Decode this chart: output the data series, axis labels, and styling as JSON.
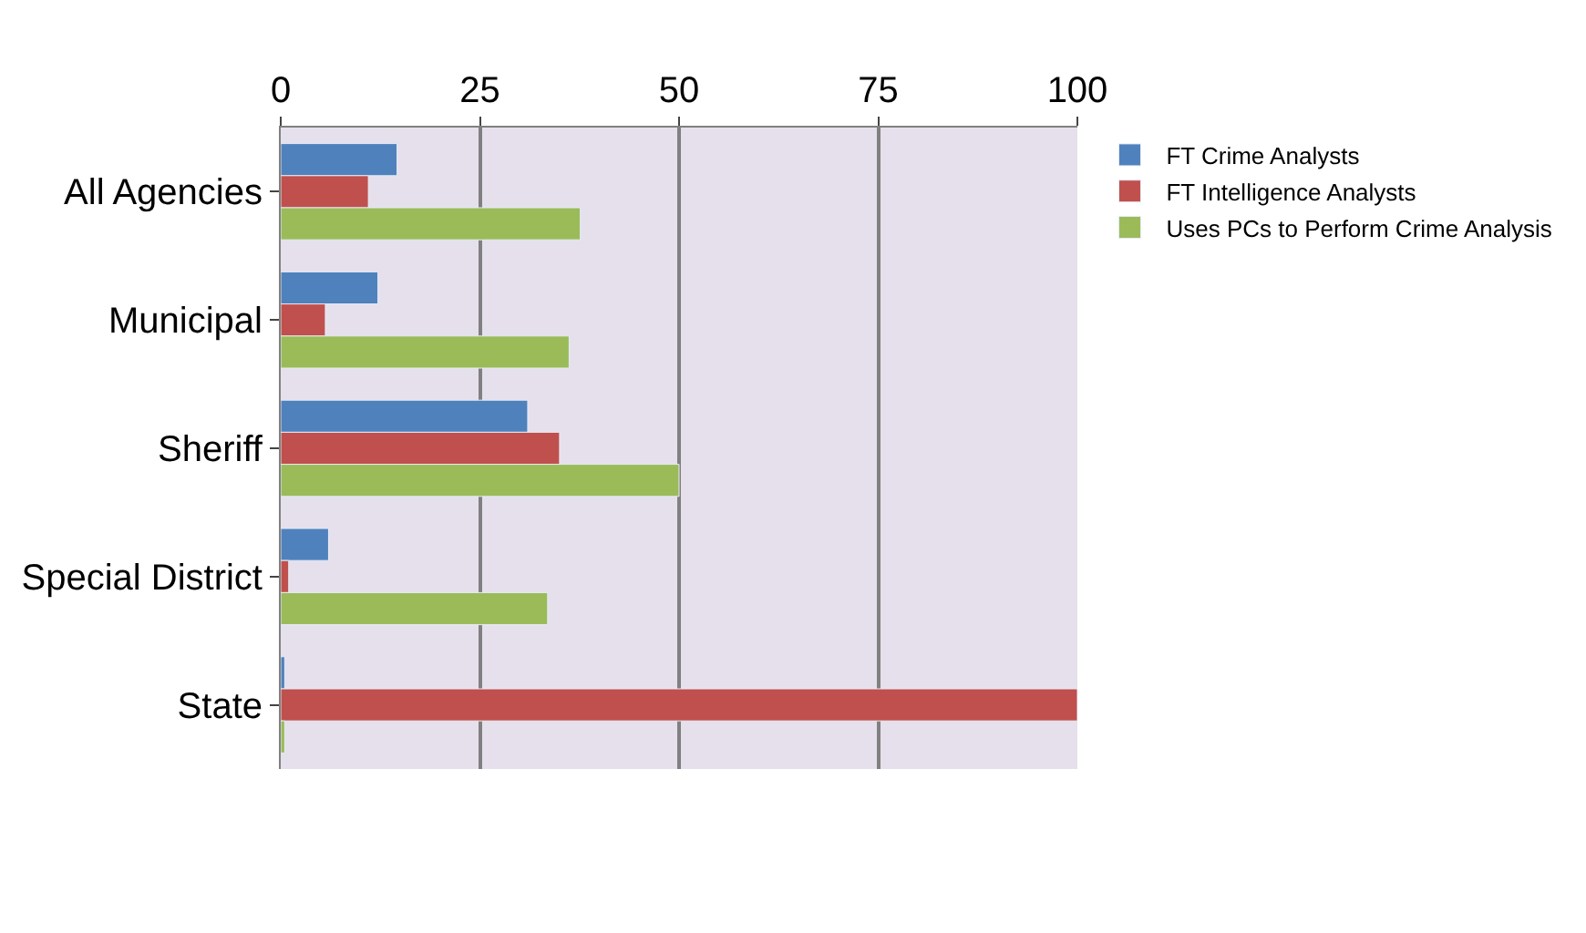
{
  "chart_data": {
    "type": "bar",
    "orientation": "horizontal",
    "categories": [
      "All Agencies",
      "Municipal",
      "Sheriff",
      "Special District",
      "State"
    ],
    "series": [
      {
        "name": "FT Crime Analysts",
        "color": "#4f81bd",
        "values": [
          14.6,
          12.2,
          31,
          6,
          0.5
        ]
      },
      {
        "name": "FT Intelligence Analysts",
        "color": "#c0504d",
        "values": [
          11,
          5.6,
          35,
          1,
          100
        ]
      },
      {
        "name": "Uses PCs to Perform Crime Analysis",
        "color": "#9bbb59",
        "values": [
          37.6,
          36.2,
          50,
          33.5,
          0.5
        ]
      }
    ],
    "xlim": [
      0,
      100
    ],
    "xticks": [
      0,
      25,
      50,
      75,
      100
    ],
    "grid": "x",
    "legend": "right"
  }
}
